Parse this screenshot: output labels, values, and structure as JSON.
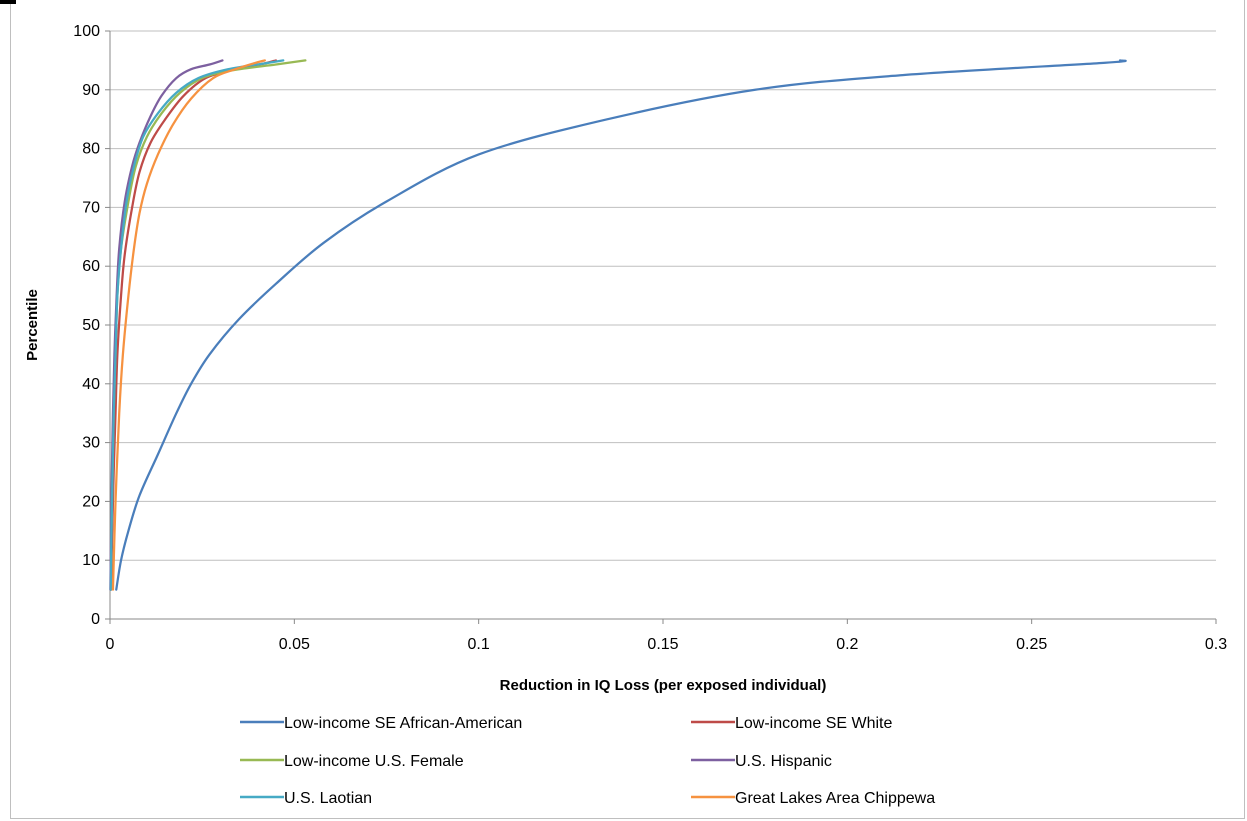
{
  "chart_data": {
    "type": "line",
    "title": "",
    "xlabel": "Reduction in IQ Loss (per exposed individual)",
    "ylabel": "Percentile",
    "xlim": [
      0,
      0.3
    ],
    "ylim": [
      0,
      100
    ],
    "x_ticks": [
      "0",
      "0.05",
      "0.1",
      "0.15",
      "0.2",
      "0.25",
      "0.3"
    ],
    "y_ticks": [
      "0",
      "10",
      "20",
      "30",
      "40",
      "50",
      "60",
      "70",
      "80",
      "90",
      "100"
    ],
    "grid": "horizontal",
    "legend_position": "bottom",
    "series": [
      {
        "name": "Low-income SE African-American",
        "color": "#4a7ebb",
        "x": [
          0.0017,
          0.003,
          0.005,
          0.008,
          0.013,
          0.018,
          0.022,
          0.027,
          0.035,
          0.045,
          0.058,
          0.075,
          0.1,
          0.135,
          0.175,
          0.215,
          0.27,
          0.274
        ],
        "y": [
          5,
          10,
          15,
          21,
          28,
          35,
          40,
          45,
          51,
          57,
          64,
          71,
          79,
          85,
          90,
          92.5,
          94.6,
          95
        ]
      },
      {
        "name": "Low-income SE White",
        "color": "#be4b48",
        "x": [
          0.0003,
          0.0006,
          0.001,
          0.0015,
          0.002,
          0.003,
          0.004,
          0.006,
          0.008,
          0.011,
          0.015,
          0.02,
          0.026,
          0.034,
          0.042,
          0.045
        ],
        "y": [
          5,
          15,
          25,
          35,
          45,
          55,
          62,
          70,
          76,
          81,
          85,
          89,
          92,
          93.5,
          94.5,
          95
        ]
      },
      {
        "name": "Low-income U.S. Female",
        "color": "#98b954",
        "x": [
          0.0002,
          0.0004,
          0.0007,
          0.001,
          0.0015,
          0.002,
          0.003,
          0.005,
          0.007,
          0.01,
          0.014,
          0.019,
          0.025,
          0.033,
          0.045,
          0.053
        ],
        "y": [
          5,
          15,
          25,
          35,
          45,
          55,
          63,
          71,
          77,
          82,
          86,
          89.5,
          92,
          93.3,
          94.3,
          95
        ]
      },
      {
        "name": "U.S. Hispanic",
        "color": "#7d60a0",
        "x": [
          0.0001,
          0.0003,
          0.0005,
          0.0008,
          0.0012,
          0.0018,
          0.0025,
          0.004,
          0.006,
          0.008,
          0.011,
          0.014,
          0.018,
          0.022,
          0.027,
          0.0305
        ],
        "y": [
          5,
          15,
          25,
          35,
          45,
          55,
          63,
          71,
          77,
          81,
          85.5,
          89,
          92,
          93.5,
          94.3,
          95
        ]
      },
      {
        "name": "U.S. Laotian",
        "color": "#46aac5",
        "x": [
          0.0002,
          0.0004,
          0.0007,
          0.001,
          0.0015,
          0.002,
          0.003,
          0.0045,
          0.0065,
          0.009,
          0.013,
          0.018,
          0.024,
          0.032,
          0.042,
          0.047
        ],
        "y": [
          5,
          15,
          25,
          35,
          45,
          55,
          63,
          71,
          77,
          82,
          86,
          89.5,
          92,
          93.5,
          94.5,
          95
        ]
      },
      {
        "name": "Great Lakes Area Chippewa",
        "color": "#f69240",
        "x": [
          0.0008,
          0.0015,
          0.0025,
          0.0035,
          0.005,
          0.0065,
          0.008,
          0.01,
          0.013,
          0.017,
          0.022,
          0.028,
          0.034,
          0.039,
          0.042
        ],
        "y": [
          5,
          20,
          35,
          45,
          55,
          63,
          69,
          74,
          79,
          84,
          88.5,
          92,
          93.5,
          94.5,
          95
        ]
      }
    ]
  }
}
